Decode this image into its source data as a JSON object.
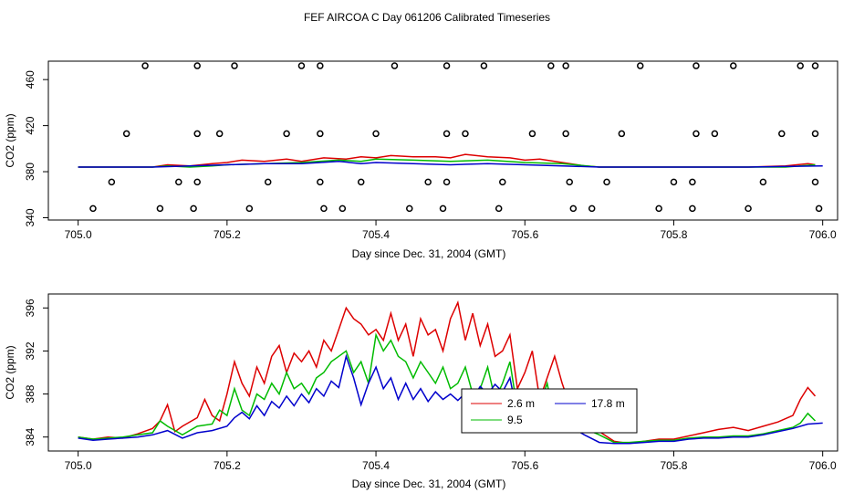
{
  "title": "FEF AIRCOA C  Day 061206  Calibrated Timeseries",
  "chart_data": [
    {
      "type": "line",
      "title": "",
      "xlabel": "Day since Dec. 31, 2004 (GMT)",
      "ylabel": "CO2 (ppm)",
      "xlim": [
        704.96,
        706.02
      ],
      "ylim": [
        338,
        476
      ],
      "xticks": [
        705.0,
        705.2,
        705.4,
        705.6,
        705.8,
        706.0
      ],
      "xtick_labels": [
        "705.0",
        "705.2",
        "705.4",
        "705.6",
        "705.8",
        "706.0"
      ],
      "yticks": [
        340,
        380,
        420,
        460
      ],
      "ytick_labels": [
        "340",
        "380",
        "420",
        "460"
      ],
      "series": [
        {
          "name": "red",
          "color": "#dd0000",
          "x": [
            705.0,
            705.08,
            705.1,
            705.12,
            705.15,
            705.18,
            705.2,
            705.22,
            705.25,
            705.28,
            705.3,
            705.33,
            705.36,
            705.38,
            705.4,
            705.42,
            705.45,
            705.48,
            705.5,
            705.52,
            705.55,
            705.58,
            705.6,
            705.62,
            705.65,
            705.68,
            705.7,
            705.8,
            705.9,
            705.95,
            705.98,
            705.99
          ],
          "y": [
            384,
            384,
            384,
            386,
            385,
            387,
            388,
            390,
            389,
            391,
            389,
            392,
            391,
            393,
            392,
            394,
            393,
            393,
            392,
            395,
            393,
            392,
            390,
            391,
            388,
            385,
            384,
            384,
            384,
            385,
            387,
            386
          ]
        },
        {
          "name": "green",
          "color": "#00bb00",
          "x": [
            705.0,
            705.1,
            705.12,
            705.15,
            705.18,
            705.2,
            705.25,
            705.3,
            705.35,
            705.38,
            705.4,
            705.45,
            705.5,
            705.55,
            705.6,
            705.65,
            705.7,
            705.8,
            705.95,
            705.99
          ],
          "y": [
            384,
            384,
            385,
            384,
            385,
            386,
            387,
            388,
            390,
            389,
            391,
            390,
            389,
            390,
            388,
            387,
            384,
            384,
            384,
            386
          ]
        },
        {
          "name": "blue",
          "color": "#0000cc",
          "x": [
            705.0,
            705.1,
            705.15,
            705.2,
            705.25,
            705.3,
            705.35,
            705.38,
            705.4,
            705.45,
            705.5,
            705.55,
            705.6,
            705.65,
            705.7,
            705.8,
            705.9,
            706.0
          ],
          "y": [
            384,
            384,
            385,
            386,
            387,
            387,
            389,
            387,
            388,
            387,
            386,
            387,
            386,
            385,
            384,
            384,
            384,
            385
          ]
        }
      ],
      "markers": [
        {
          "x": 705.09,
          "y": 472
        },
        {
          "x": 705.16,
          "y": 472
        },
        {
          "x": 705.21,
          "y": 472
        },
        {
          "x": 705.3,
          "y": 472
        },
        {
          "x": 705.325,
          "y": 472
        },
        {
          "x": 705.425,
          "y": 472
        },
        {
          "x": 705.495,
          "y": 472
        },
        {
          "x": 705.545,
          "y": 472
        },
        {
          "x": 705.635,
          "y": 472
        },
        {
          "x": 705.655,
          "y": 472
        },
        {
          "x": 705.755,
          "y": 472
        },
        {
          "x": 705.83,
          "y": 472
        },
        {
          "x": 705.88,
          "y": 472
        },
        {
          "x": 705.97,
          "y": 472
        },
        {
          "x": 705.99,
          "y": 472
        },
        {
          "x": 705.065,
          "y": 413
        },
        {
          "x": 705.16,
          "y": 413
        },
        {
          "x": 705.19,
          "y": 413
        },
        {
          "x": 705.28,
          "y": 413
        },
        {
          "x": 705.325,
          "y": 413
        },
        {
          "x": 705.4,
          "y": 413
        },
        {
          "x": 705.495,
          "y": 413
        },
        {
          "x": 705.52,
          "y": 413
        },
        {
          "x": 705.61,
          "y": 413
        },
        {
          "x": 705.655,
          "y": 413
        },
        {
          "x": 705.73,
          "y": 413
        },
        {
          "x": 705.83,
          "y": 413
        },
        {
          "x": 705.855,
          "y": 413
        },
        {
          "x": 705.945,
          "y": 413
        },
        {
          "x": 705.99,
          "y": 413
        },
        {
          "x": 705.045,
          "y": 371
        },
        {
          "x": 705.135,
          "y": 371
        },
        {
          "x": 705.16,
          "y": 371
        },
        {
          "x": 705.255,
          "y": 371
        },
        {
          "x": 705.325,
          "y": 371
        },
        {
          "x": 705.38,
          "y": 371
        },
        {
          "x": 705.47,
          "y": 371
        },
        {
          "x": 705.495,
          "y": 371
        },
        {
          "x": 705.57,
          "y": 371
        },
        {
          "x": 705.66,
          "y": 371
        },
        {
          "x": 705.71,
          "y": 371
        },
        {
          "x": 705.8,
          "y": 371
        },
        {
          "x": 705.825,
          "y": 371
        },
        {
          "x": 705.92,
          "y": 371
        },
        {
          "x": 705.99,
          "y": 371
        },
        {
          "x": 705.02,
          "y": 348
        },
        {
          "x": 705.11,
          "y": 348
        },
        {
          "x": 705.155,
          "y": 348
        },
        {
          "x": 705.23,
          "y": 348
        },
        {
          "x": 705.33,
          "y": 348
        },
        {
          "x": 705.355,
          "y": 348
        },
        {
          "x": 705.445,
          "y": 348
        },
        {
          "x": 705.49,
          "y": 348
        },
        {
          "x": 705.565,
          "y": 348
        },
        {
          "x": 705.665,
          "y": 348
        },
        {
          "x": 705.69,
          "y": 348
        },
        {
          "x": 705.78,
          "y": 348
        },
        {
          "x": 705.825,
          "y": 348
        },
        {
          "x": 705.9,
          "y": 348
        },
        {
          "x": 705.995,
          "y": 348
        }
      ]
    },
    {
      "type": "line",
      "title": "",
      "xlabel": "Day since Dec. 31, 2004 (GMT)",
      "ylabel": "CO2 (ppm)",
      "xlim": [
        704.96,
        706.02
      ],
      "ylim": [
        382.7,
        397.3
      ],
      "xticks": [
        705.0,
        705.2,
        705.4,
        705.6,
        705.8,
        706.0
      ],
      "xtick_labels": [
        "705.0",
        "705.2",
        "705.4",
        "705.6",
        "705.8",
        "706.0"
      ],
      "yticks": [
        384,
        388,
        392,
        396
      ],
      "ytick_labels": [
        "384",
        "388",
        "392",
        "396"
      ],
      "legend": {
        "position": "center-right",
        "entries": [
          {
            "label": "2.6 m",
            "color": "#dd0000"
          },
          {
            "label": "9.5",
            "color": "#00bb00"
          },
          {
            "label": "17.8 m",
            "color": "#0000cc"
          }
        ]
      },
      "series": [
        {
          "name": "2.6 m",
          "color": "#dd0000",
          "x": [
            705.0,
            705.02,
            705.04,
            705.06,
            705.08,
            705.1,
            705.11,
            705.12,
            705.13,
            705.14,
            705.16,
            705.17,
            705.18,
            705.19,
            705.2,
            705.21,
            705.22,
            705.23,
            705.24,
            705.25,
            705.26,
            705.27,
            705.28,
            705.29,
            705.3,
            705.31,
            705.32,
            705.33,
            705.34,
            705.35,
            705.36,
            705.37,
            705.38,
            705.39,
            705.4,
            705.41,
            705.42,
            705.43,
            705.44,
            705.45,
            705.46,
            705.47,
            705.48,
            705.49,
            705.5,
            705.51,
            705.52,
            705.53,
            705.54,
            705.55,
            705.56,
            705.57,
            705.58,
            705.59,
            705.6,
            705.61,
            705.62,
            705.63,
            705.64,
            705.65,
            705.66,
            705.67,
            705.68,
            705.7,
            705.72,
            705.74,
            705.76,
            705.78,
            705.8,
            705.82,
            705.84,
            705.86,
            705.88,
            705.9,
            705.92,
            705.94,
            705.96,
            705.97,
            705.98,
            705.99
          ],
          "y": [
            384.0,
            383.8,
            384.0,
            383.9,
            384.3,
            384.8,
            385.5,
            387.0,
            384.5,
            385.0,
            385.8,
            387.5,
            386.0,
            385.5,
            388.0,
            391.0,
            389.0,
            387.8,
            390.5,
            389.0,
            391.5,
            392.5,
            390.0,
            391.8,
            391.0,
            392.0,
            390.5,
            393.0,
            392.0,
            394.0,
            396.0,
            395.0,
            394.5,
            393.5,
            394.0,
            393.0,
            395.5,
            393.0,
            394.5,
            391.5,
            395.0,
            393.5,
            394.0,
            392.0,
            395.0,
            396.5,
            393.0,
            395.5,
            392.5,
            394.5,
            391.5,
            392.0,
            393.5,
            388.5,
            390.0,
            392.0,
            387.5,
            389.5,
            391.5,
            389.0,
            387.0,
            386.0,
            385.5,
            384.5,
            383.6,
            383.4,
            383.6,
            383.8,
            383.8,
            384.1,
            384.4,
            384.7,
            384.9,
            384.6,
            385.0,
            385.4,
            386.0,
            387.5,
            388.6,
            387.8
          ]
        },
        {
          "name": "9.5",
          "color": "#00bb00",
          "x": [
            705.0,
            705.02,
            705.04,
            705.06,
            705.08,
            705.1,
            705.11,
            705.12,
            705.14,
            705.16,
            705.18,
            705.19,
            705.2,
            705.21,
            705.22,
            705.23,
            705.24,
            705.25,
            705.26,
            705.27,
            705.28,
            705.29,
            705.3,
            705.31,
            705.32,
            705.33,
            705.34,
            705.35,
            705.36,
            705.37,
            705.38,
            705.39,
            705.4,
            705.41,
            705.42,
            705.43,
            705.44,
            705.45,
            705.46,
            705.47,
            705.48,
            705.49,
            705.5,
            705.51,
            705.52,
            705.53,
            705.54,
            705.55,
            705.56,
            705.57,
            705.58,
            705.59,
            705.6,
            705.61,
            705.62,
            705.63,
            705.64,
            705.65,
            705.66,
            705.67,
            705.68,
            705.7,
            705.72,
            705.74,
            705.76,
            705.78,
            705.8,
            705.82,
            705.84,
            705.86,
            705.88,
            705.9,
            705.92,
            705.94,
            705.96,
            705.97,
            705.98,
            705.99
          ],
          "y": [
            384.0,
            383.8,
            383.9,
            384.0,
            384.2,
            384.4,
            385.5,
            385.0,
            384.2,
            385.0,
            385.2,
            386.5,
            386.0,
            388.5,
            386.5,
            386.0,
            388.0,
            387.5,
            389.0,
            388.0,
            390.0,
            388.5,
            389.0,
            388.0,
            389.5,
            390.0,
            391.0,
            391.5,
            392.0,
            390.0,
            391.0,
            389.0,
            393.5,
            392.0,
            393.0,
            391.5,
            391.0,
            389.5,
            391.0,
            390.0,
            389.0,
            390.5,
            388.5,
            389.0,
            390.5,
            388.0,
            388.5,
            390.5,
            387.5,
            389.0,
            391.0,
            386.5,
            388.0,
            386.0,
            387.0,
            389.0,
            385.5,
            386.0,
            385.5,
            385.0,
            384.8,
            384.2,
            383.5,
            383.5,
            383.6,
            383.7,
            383.7,
            383.9,
            384.0,
            384.0,
            384.1,
            384.1,
            384.3,
            384.6,
            384.9,
            385.3,
            386.2,
            385.5
          ]
        },
        {
          "name": "17.8 m",
          "color": "#0000cc",
          "x": [
            705.0,
            705.02,
            705.04,
            705.06,
            705.08,
            705.1,
            705.12,
            705.14,
            705.16,
            705.18,
            705.2,
            705.21,
            705.22,
            705.23,
            705.24,
            705.25,
            705.26,
            705.27,
            705.28,
            705.29,
            705.3,
            705.31,
            705.32,
            705.33,
            705.34,
            705.35,
            705.36,
            705.37,
            705.38,
            705.39,
            705.4,
            705.41,
            705.42,
            705.43,
            705.44,
            705.45,
            705.46,
            705.47,
            705.48,
            705.49,
            705.5,
            705.51,
            705.52,
            705.53,
            705.54,
            705.55,
            705.56,
            705.57,
            705.58,
            705.59,
            705.6,
            705.61,
            705.62,
            705.63,
            705.64,
            705.65,
            705.66,
            705.67,
            705.68,
            705.7,
            705.72,
            705.74,
            705.76,
            705.78,
            705.8,
            705.82,
            705.84,
            705.86,
            705.88,
            705.9,
            705.92,
            705.94,
            705.96,
            705.98,
            706.0
          ],
          "y": [
            383.9,
            383.7,
            383.8,
            383.9,
            384.0,
            384.2,
            384.6,
            383.9,
            384.4,
            384.6,
            385.0,
            385.8,
            386.3,
            385.7,
            386.9,
            386.0,
            387.3,
            386.7,
            387.8,
            386.9,
            388.0,
            387.2,
            388.5,
            387.8,
            389.2,
            388.6,
            391.5,
            389.5,
            387.0,
            389.0,
            390.5,
            388.5,
            389.5,
            387.5,
            389.0,
            387.5,
            388.5,
            387.3,
            388.2,
            387.5,
            388.0,
            387.4,
            388.1,
            387.6,
            388.7,
            388.0,
            388.9,
            388.2,
            389.5,
            386.0,
            386.8,
            385.6,
            385.9,
            384.9,
            385.8,
            384.8,
            385.3,
            384.6,
            384.2,
            383.5,
            383.4,
            383.4,
            383.5,
            383.6,
            383.6,
            383.8,
            383.9,
            383.9,
            384.0,
            384.0,
            384.2,
            384.5,
            384.8,
            385.2,
            385.3
          ]
        }
      ]
    }
  ]
}
